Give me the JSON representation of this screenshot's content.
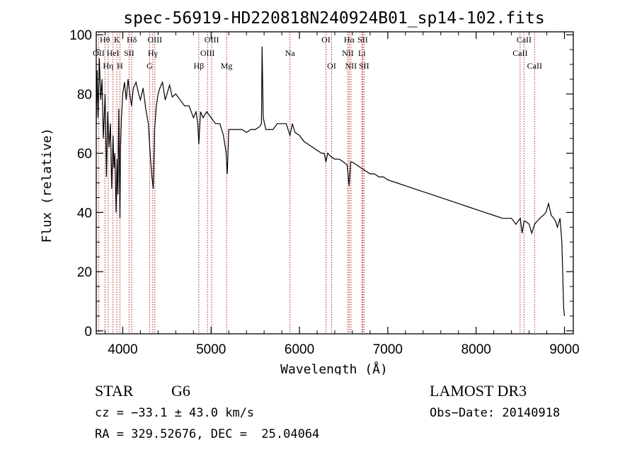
{
  "chart_data": {
    "type": "line",
    "title": "spec-56919-HD220818N240924B01_sp14-102.fits",
    "xlabel": "Wavelength (Å)",
    "ylabel": "Flux (relative)",
    "xlim": [
      3700,
      9100
    ],
    "ylim": [
      -1,
      101
    ],
    "xticks": [
      4000,
      5000,
      6000,
      7000,
      8000,
      9000
    ],
    "yticks": [
      0,
      20,
      40,
      60,
      80,
      100
    ],
    "grid": false,
    "series": [
      {
        "name": "flux",
        "x": [
          3700,
          3710,
          3720,
          3735,
          3750,
          3765,
          3780,
          3800,
          3815,
          3830,
          3845,
          3860,
          3875,
          3890,
          3900,
          3910,
          3925,
          3935,
          3945,
          3955,
          3968,
          3975,
          3985,
          4000,
          4020,
          4040,
          4060,
          4080,
          4100,
          4120,
          4150,
          4180,
          4200,
          4230,
          4260,
          4290,
          4310,
          4330,
          4345,
          4360,
          4380,
          4400,
          4420,
          4450,
          4480,
          4500,
          4530,
          4560,
          4600,
          4650,
          4700,
          4750,
          4800,
          4830,
          4850,
          4861,
          4880,
          4910,
          4950,
          5000,
          5050,
          5100,
          5140,
          5170,
          5183,
          5200,
          5250,
          5300,
          5350,
          5400,
          5450,
          5500,
          5550,
          5570,
          5577,
          5590,
          5620,
          5650,
          5700,
          5750,
          5800,
          5850,
          5893,
          5920,
          5950,
          6000,
          6050,
          6100,
          6150,
          6200,
          6250,
          6280,
          6300,
          6320,
          6350,
          6400,
          6450,
          6500,
          6540,
          6563,
          6580,
          6600,
          6650,
          6700,
          6750,
          6800,
          6850,
          6900,
          6950,
          7000,
          7100,
          7200,
          7300,
          7400,
          7500,
          7600,
          7700,
          7800,
          7900,
          8000,
          8100,
          8200,
          8300,
          8400,
          8450,
          8500,
          8520,
          8542,
          8560,
          8600,
          8630,
          8662,
          8690,
          8720,
          8760,
          8790,
          8820,
          8850,
          8880,
          8900,
          8920,
          8950,
          8970,
          8980,
          8990,
          9000
        ],
        "values": [
          70,
          88,
          72,
          92,
          78,
          85,
          65,
          80,
          52,
          74,
          62,
          70,
          48,
          66,
          55,
          60,
          40,
          58,
          46,
          75,
          38,
          62,
          72,
          80,
          84,
          78,
          85,
          80,
          76,
          82,
          84,
          80,
          78,
          82,
          75,
          70,
          60,
          52,
          48,
          68,
          76,
          80,
          82,
          84,
          78,
          80,
          83,
          79,
          80,
          78,
          76,
          76,
          72,
          74,
          70,
          63,
          74,
          72,
          74,
          72,
          70,
          70,
          66,
          60,
          53,
          68,
          68,
          68,
          68,
          67,
          68,
          68,
          69,
          70,
          96,
          72,
          68,
          68,
          68,
          70,
          70,
          70,
          66,
          70,
          67,
          66,
          64,
          63,
          62,
          61,
          60,
          60,
          57,
          60,
          59,
          58,
          58,
          57,
          56,
          49,
          57,
          57,
          56,
          55,
          54,
          53,
          53,
          52,
          52,
          51,
          50,
          49,
          48,
          47,
          46,
          45,
          44,
          43,
          42,
          41,
          40,
          39,
          38,
          38,
          36,
          38,
          33,
          37,
          37,
          36,
          33,
          36,
          37,
          38,
          39,
          40,
          43,
          39,
          38,
          37,
          35,
          38,
          30,
          20,
          8,
          5
        ]
      }
    ],
    "lines": [
      {
        "name": "OII",
        "x": 3727,
        "label": "OII",
        "row": 1
      },
      {
        "name": "Hθ",
        "x": 3798,
        "label": "Hθ",
        "row": 0
      },
      {
        "name": "Hη",
        "x": 3835,
        "label": "Hη",
        "row": 2
      },
      {
        "name": "HeI",
        "x": 3889,
        "label": "HeI",
        "row": 1
      },
      {
        "name": "K",
        "x": 3934,
        "label": "K",
        "row": 0
      },
      {
        "name": "H",
        "x": 3968,
        "label": "H",
        "row": 2
      },
      {
        "name": "SII",
        "x": 4072,
        "label": "SII",
        "row": 1
      },
      {
        "name": "Hδ",
        "x": 4102,
        "label": "Hδ",
        "row": 0
      },
      {
        "name": "G",
        "x": 4305,
        "label": "G",
        "row": 2
      },
      {
        "name": "Hγ",
        "x": 4340,
        "label": "Hγ",
        "row": 1
      },
      {
        "name": "OIII-4363",
        "x": 4363,
        "label": "OIII",
        "row": 0
      },
      {
        "name": "Hβ",
        "x": 4861,
        "label": "Hβ",
        "row": 2
      },
      {
        "name": "OIII-4959",
        "x": 4959,
        "label": "OIII",
        "row": 1
      },
      {
        "name": "OIII-5007",
        "x": 5007,
        "label": "OIII",
        "row": 0
      },
      {
        "name": "Mg",
        "x": 5175,
        "label": "Mg",
        "row": 2
      },
      {
        "name": "Na",
        "x": 5893,
        "label": "Na",
        "row": 1
      },
      {
        "name": "OI-6300",
        "x": 6300,
        "label": "OI",
        "row": 0
      },
      {
        "name": "OI-6364",
        "x": 6364,
        "label": "OI",
        "row": 2
      },
      {
        "name": "NII-6548",
        "x": 6548,
        "label": "NII",
        "row": 1
      },
      {
        "name": "Hα",
        "x": 6563,
        "label": "Hα",
        "row": 0
      },
      {
        "name": "NII-6583",
        "x": 6583,
        "label": "NII",
        "row": 2
      },
      {
        "name": "Li",
        "x": 6707,
        "label": "Li",
        "row": 1
      },
      {
        "name": "SII-6716",
        "x": 6716,
        "label": "SII",
        "row": 0
      },
      {
        "name": "SII-6731",
        "x": 6731,
        "label": "SII",
        "row": 2
      },
      {
        "name": "CaII-8498",
        "x": 8498,
        "label": "CaII",
        "row": 1
      },
      {
        "name": "CaII-8542",
        "x": 8542,
        "label": "CaII",
        "row": 0
      },
      {
        "name": "CaII-8662",
        "x": 8662,
        "label": "CaII",
        "row": 2
      }
    ],
    "colors": {
      "spectrum": "#000000",
      "lines": "#b22222",
      "axes": "#000000"
    }
  },
  "info": {
    "object_class": "STAR",
    "subclass": "G6",
    "survey": "LAMOST DR3",
    "cz": "cz = −33.1 ± 43.0 km/s",
    "obs_date": "Obs−Date: 20140918",
    "coords": "RA = 329.52676, DEC =  25.04064"
  }
}
